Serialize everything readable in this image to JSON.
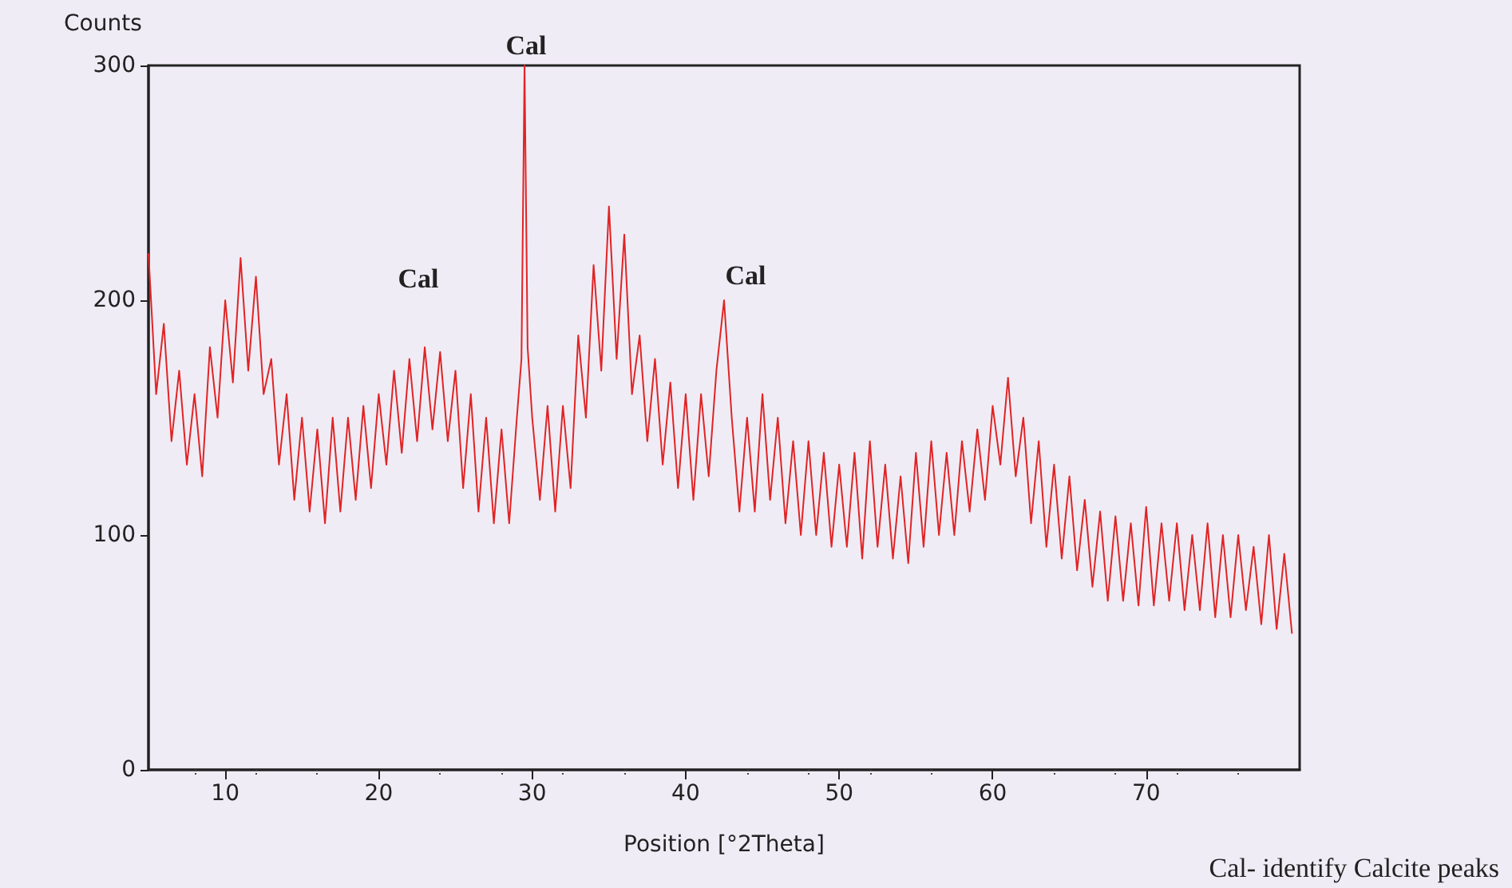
{
  "chart_data": {
    "type": "line",
    "xlabel": "Position [°2Theta]",
    "ylabel": "Counts",
    "x": [
      5,
      5.5,
      6,
      6.5,
      7,
      7.5,
      8,
      8.5,
      9,
      9.5,
      10,
      10.5,
      11,
      11.5,
      12,
      12.5,
      13,
      13.5,
      14,
      14.5,
      15,
      15.5,
      16,
      16.5,
      17,
      17.5,
      18,
      18.5,
      19,
      19.5,
      20,
      20.5,
      21,
      21.5,
      22,
      22.5,
      23,
      23.5,
      24,
      24.5,
      25,
      25.5,
      26,
      26.5,
      27,
      27.5,
      28,
      28.5,
      29,
      29.3,
      29.5,
      29.7,
      30,
      30.5,
      31,
      31.5,
      32,
      32.5,
      33,
      33.5,
      34,
      34.5,
      35,
      35.5,
      36,
      36.5,
      37,
      37.5,
      38,
      38.5,
      39,
      39.5,
      40,
      40.5,
      41,
      41.5,
      42,
      42.5,
      43,
      43.5,
      44,
      44.5,
      45,
      45.5,
      46,
      46.5,
      47,
      47.5,
      48,
      48.5,
      49,
      49.5,
      50,
      50.5,
      51,
      51.5,
      52,
      52.5,
      53,
      53.5,
      54,
      54.5,
      55,
      55.5,
      56,
      56.5,
      57,
      57.5,
      58,
      58.5,
      59,
      59.5,
      60,
      60.5,
      61,
      61.5,
      62,
      62.5,
      63,
      63.5,
      64,
      64.5,
      65,
      65.5,
      66,
      66.5,
      67,
      67.5,
      68,
      68.5,
      69,
      69.5,
      70,
      70.5,
      71,
      71.5,
      72,
      72.5,
      73,
      73.5,
      74,
      74.5,
      75,
      75.5,
      76,
      76.5,
      77,
      77.5,
      78,
      78.5,
      79,
      79.5
    ],
    "series": [
      {
        "color": "#e02424",
        "values": [
          220,
          160,
          190,
          140,
          170,
          130,
          160,
          125,
          180,
          150,
          200,
          165,
          218,
          170,
          210,
          160,
          175,
          130,
          160,
          115,
          150,
          110,
          145,
          105,
          150,
          110,
          150,
          115,
          155,
          120,
          160,
          130,
          170,
          135,
          175,
          140,
          180,
          145,
          178,
          140,
          170,
          120,
          160,
          110,
          150,
          105,
          145,
          105,
          150,
          175,
          300,
          180,
          150,
          115,
          155,
          110,
          155,
          120,
          185,
          150,
          215,
          170,
          240,
          175,
          228,
          160,
          185,
          140,
          175,
          130,
          165,
          120,
          160,
          115,
          160,
          125,
          170,
          200,
          150,
          110,
          150,
          110,
          160,
          115,
          150,
          105,
          140,
          100,
          140,
          100,
          135,
          95,
          130,
          95,
          135,
          90,
          140,
          95,
          130,
          90,
          125,
          88,
          135,
          95,
          140,
          100,
          135,
          100,
          140,
          110,
          145,
          115,
          155,
          130,
          167,
          125,
          150,
          105,
          140,
          95,
          130,
          90,
          125,
          85,
          115,
          78,
          110,
          72,
          108,
          72,
          105,
          70,
          112,
          70,
          105,
          72,
          105,
          68,
          100,
          68,
          105,
          65,
          100,
          65,
          100,
          68,
          95,
          62,
          100,
          60,
          92,
          58
        ]
      }
    ],
    "xlim": [
      5,
      80
    ],
    "xticks": [
      10,
      20,
      30,
      40,
      50,
      60,
      70
    ],
    "ylim": [
      0,
      300
    ],
    "yticks": [
      0,
      100,
      200,
      300
    ],
    "grid": false,
    "marker": "none",
    "line_style": "solid",
    "annotations": [
      {
        "text": "Cal",
        "x": 29.6,
        "y": 300
      },
      "Cal",
      "Cal",
      "Cal- identify Calcite peaks"
    ]
  }
}
